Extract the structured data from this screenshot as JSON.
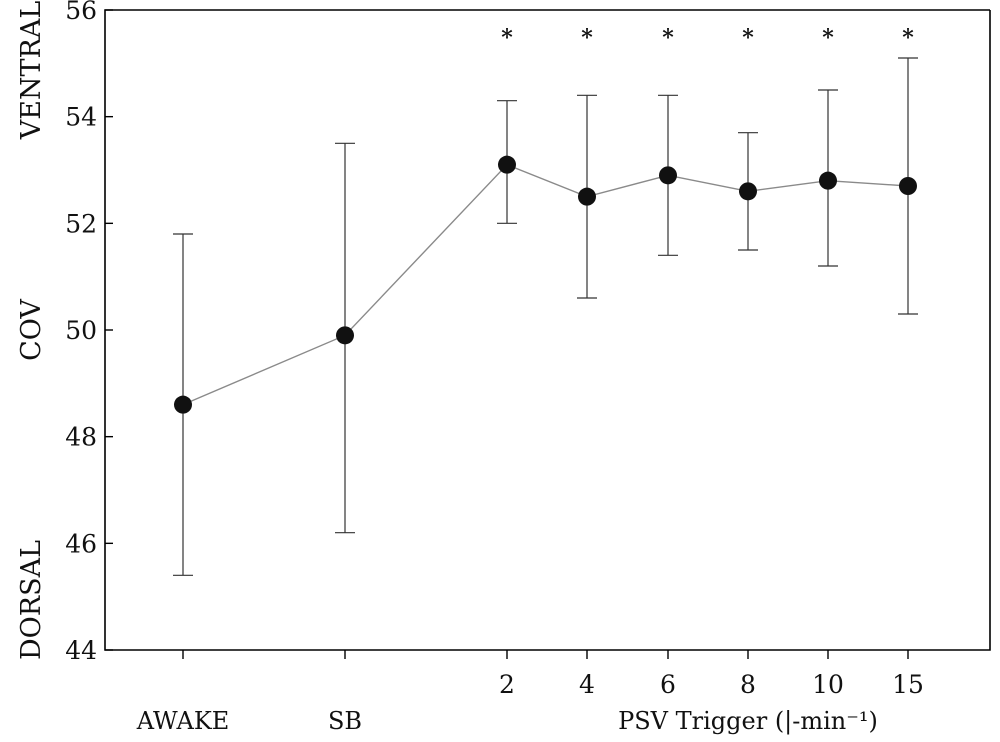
{
  "chart_data": {
    "type": "line",
    "y_ticks": [
      44,
      46,
      48,
      50,
      52,
      54,
      56
    ],
    "ylim": [
      44,
      56
    ],
    "categories": [
      "AWAKE",
      "SB",
      "2",
      "4",
      "6",
      "8",
      "10",
      "15"
    ],
    "side_labels": {
      "top": "VENTRAL",
      "middle": "COV",
      "bottom": "DORSAL"
    },
    "x_group_label": "PSV Trigger (|-min⁻¹)",
    "significance_marker": "*",
    "series": [
      {
        "values": [
          48.6,
          49.9,
          53.1,
          52.5,
          52.9,
          52.6,
          52.8,
          52.7
        ],
        "err_low": [
          45.4,
          46.2,
          52.0,
          50.6,
          51.4,
          51.5,
          51.2,
          50.3
        ],
        "err_high": [
          51.8,
          53.5,
          54.3,
          54.4,
          54.4,
          53.7,
          54.5,
          55.1
        ],
        "significant": [
          false,
          false,
          true,
          true,
          true,
          true,
          true,
          true
        ]
      }
    ],
    "grid": false,
    "legend": "none",
    "colors": {
      "line": "#8a8a8a",
      "marker": "#111111",
      "error_bar": "#333333"
    }
  }
}
